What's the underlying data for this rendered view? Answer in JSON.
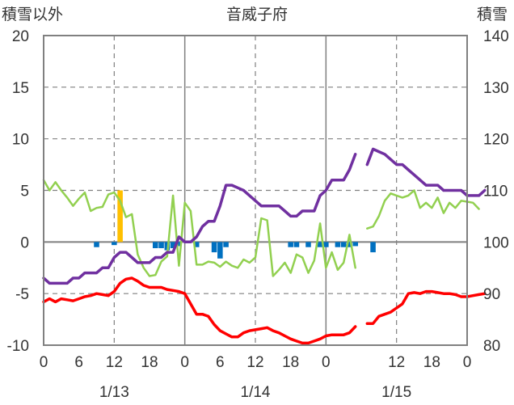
{
  "chart_data": {
    "type": "line",
    "title": "音威子府",
    "left_axis_label": "積雪以外",
    "right_axis_label": "積雪",
    "left_ylim": [
      -10,
      20
    ],
    "right_ylim": [
      80,
      140
    ],
    "left_ticks": [
      "20",
      "15",
      "10",
      "5",
      "0",
      "-5",
      "-10"
    ],
    "right_ticks": [
      "140",
      "130",
      "120",
      "110",
      "100",
      "90",
      "80"
    ],
    "x_tick_labels": [
      "0",
      "6",
      "12",
      "18",
      "0",
      "6",
      "12",
      "18",
      "0",
      "12",
      "18",
      "0"
    ],
    "x_tick_hours": [
      0,
      6,
      12,
      18,
      24,
      30,
      36,
      42,
      48,
      60,
      66,
      72
    ],
    "date_labels": [
      {
        "label": "1/13",
        "hour": 12
      },
      {
        "label": "1/14",
        "hour": 36
      },
      {
        "label": "1/15",
        "hour": 60
      }
    ],
    "x_range_hours": [
      0,
      72
    ],
    "grid": {
      "dashed_vertical_hours": [
        12,
        36,
        60
      ],
      "solid_vertical_hours": [
        24,
        48
      ],
      "zero_line": true
    },
    "colors": {
      "snow_depth": "#7030a0",
      "temperature": "#ff0000",
      "wind": "#92d050",
      "precip_blue": "#0070c0",
      "precip_orange": "#ffc000",
      "frame": "#808080",
      "grid": "#808080",
      "text": "#333333"
    },
    "series": [
      {
        "key": "snow_depth",
        "axis": "right",
        "width": 3.5,
        "segments": [
          [
            [
              0,
              93
            ],
            [
              1,
              92
            ],
            [
              2,
              92
            ],
            [
              3,
              92
            ],
            [
              4,
              92
            ],
            [
              5,
              93
            ],
            [
              6,
              93
            ],
            [
              7,
              94
            ],
            [
              8,
              94
            ],
            [
              9,
              94
            ],
            [
              10,
              95
            ],
            [
              11,
              95
            ],
            [
              12,
              97
            ],
            [
              13,
              98
            ],
            [
              14,
              98
            ],
            [
              15,
              97
            ],
            [
              16,
              96
            ],
            [
              17,
              96
            ],
            [
              18,
              96
            ],
            [
              19,
              97
            ],
            [
              20,
              97
            ],
            [
              21,
              98
            ],
            [
              22,
              98
            ],
            [
              23,
              101
            ],
            [
              24,
              100
            ],
            [
              25,
              100
            ],
            [
              26,
              101
            ],
            [
              27,
              103
            ],
            [
              28,
              104
            ],
            [
              29,
              104
            ],
            [
              30,
              107
            ],
            [
              31,
              111
            ],
            [
              32,
              111
            ],
            [
              33,
              110.5
            ],
            [
              34,
              110
            ],
            [
              35,
              109
            ],
            [
              36,
              108
            ],
            [
              37,
              107
            ],
            [
              38,
              107
            ],
            [
              39,
              107
            ],
            [
              40,
              107
            ],
            [
              41,
              106
            ],
            [
              42,
              105
            ],
            [
              43,
              105
            ],
            [
              44,
              106
            ],
            [
              45,
              106
            ],
            [
              46,
              106
            ],
            [
              47,
              109
            ],
            [
              48,
              110
            ],
            [
              49,
              112
            ],
            [
              50,
              112
            ],
            [
              51,
              112
            ],
            [
              52,
              114
            ],
            [
              53,
              117
            ]
          ],
          [
            [
              55,
              115
            ],
            [
              56,
              118
            ],
            [
              57,
              117.5
            ],
            [
              58,
              117
            ],
            [
              59,
              116
            ],
            [
              60,
              115
            ],
            [
              61,
              115
            ],
            [
              62,
              114
            ],
            [
              63,
              113
            ],
            [
              64,
              112
            ],
            [
              65,
              111
            ],
            [
              66,
              111
            ],
            [
              67,
              111
            ],
            [
              68,
              110
            ],
            [
              69,
              110
            ],
            [
              70,
              110
            ],
            [
              71,
              110
            ],
            [
              72,
              109
            ],
            [
              73,
              109
            ],
            [
              74,
              109
            ],
            [
              75,
              110
            ]
          ]
        ]
      },
      {
        "key": "temperature",
        "axis": "left",
        "width": 3.5,
        "segments": [
          [
            [
              0,
              -5.8
            ],
            [
              1,
              -5.5
            ],
            [
              2,
              -5.8
            ],
            [
              3,
              -5.5
            ],
            [
              4,
              -5.6
            ],
            [
              5,
              -5.7
            ],
            [
              6,
              -5.5
            ],
            [
              7,
              -5.3
            ],
            [
              8,
              -5.2
            ],
            [
              9,
              -5
            ],
            [
              10,
              -5.1
            ],
            [
              11,
              -5.2
            ],
            [
              12,
              -4.8
            ],
            [
              13,
              -4
            ],
            [
              14,
              -3.6
            ],
            [
              15,
              -3.5
            ],
            [
              16,
              -3.8
            ],
            [
              17,
              -4.2
            ],
            [
              18,
              -4.4
            ],
            [
              19,
              -4.4
            ],
            [
              20,
              -4.4
            ],
            [
              21,
              -4.6
            ],
            [
              22,
              -4.7
            ],
            [
              23,
              -4.8
            ],
            [
              24,
              -5
            ],
            [
              25,
              -6
            ],
            [
              26,
              -7
            ],
            [
              27,
              -7
            ],
            [
              28,
              -7.2
            ],
            [
              29,
              -8
            ],
            [
              30,
              -8.6
            ],
            [
              31,
              -8.9
            ],
            [
              32,
              -9.2
            ],
            [
              33,
              -9.2
            ],
            [
              34,
              -8.8
            ],
            [
              35,
              -8.6
            ],
            [
              36,
              -8.5
            ],
            [
              37,
              -8.4
            ],
            [
              38,
              -8.3
            ],
            [
              39,
              -8.6
            ],
            [
              40,
              -8.8
            ],
            [
              41,
              -9.1
            ],
            [
              42,
              -9.4
            ],
            [
              43,
              -9.6
            ],
            [
              44,
              -9.8
            ],
            [
              45,
              -9.8
            ],
            [
              46,
              -9.6
            ],
            [
              47,
              -9.4
            ],
            [
              48,
              -9.1
            ],
            [
              49,
              -9
            ],
            [
              50,
              -9
            ],
            [
              51,
              -9
            ],
            [
              52,
              -8.8
            ],
            [
              53,
              -8.2
            ]
          ],
          [
            [
              55,
              -7.9
            ],
            [
              56,
              -7.9
            ],
            [
              57,
              -7.2
            ],
            [
              58,
              -7
            ],
            [
              59,
              -6.8
            ],
            [
              60,
              -6.4
            ],
            [
              61,
              -6
            ],
            [
              62,
              -5
            ],
            [
              63,
              -4.9
            ],
            [
              64,
              -5
            ],
            [
              65,
              -4.8
            ],
            [
              66,
              -4.8
            ],
            [
              67,
              -4.9
            ],
            [
              68,
              -5
            ],
            [
              69,
              -5
            ],
            [
              70,
              -5.1
            ],
            [
              71,
              -5.3
            ],
            [
              72,
              -5.3
            ],
            [
              73,
              -5.2
            ],
            [
              74,
              -5.1
            ],
            [
              75,
              -5
            ]
          ]
        ]
      },
      {
        "key": "wind",
        "axis": "left",
        "width": 2.5,
        "segments": [
          [
            [
              0,
              6
            ],
            [
              1,
              5
            ],
            [
              2,
              5.8
            ],
            [
              3,
              5
            ],
            [
              4,
              4.3
            ],
            [
              5,
              3.5
            ],
            [
              6,
              4.2
            ],
            [
              7,
              4.8
            ],
            [
              8,
              3
            ],
            [
              9,
              3.3
            ],
            [
              10,
              3.4
            ],
            [
              11,
              4.6
            ],
            [
              12,
              4.8
            ],
            [
              13,
              4
            ],
            [
              14,
              2.4
            ],
            [
              15,
              2.7
            ],
            [
              16,
              -1.2
            ],
            [
              17,
              -2.5
            ],
            [
              18,
              -3.3
            ],
            [
              19,
              -3.2
            ],
            [
              20,
              -1.9
            ],
            [
              21,
              -1.4
            ],
            [
              22,
              4.5
            ],
            [
              23,
              -2.3
            ],
            [
              24,
              3.8
            ],
            [
              25,
              3
            ],
            [
              26,
              -2.2
            ],
            [
              27,
              -2.2
            ],
            [
              28,
              -1.9
            ],
            [
              29,
              -2
            ],
            [
              30,
              -2.4
            ],
            [
              31,
              -1.9
            ],
            [
              32,
              -2.3
            ],
            [
              33,
              -2.5
            ],
            [
              34,
              -1.7
            ],
            [
              35,
              -2
            ],
            [
              36,
              -1.5
            ],
            [
              37,
              2.3
            ],
            [
              38,
              2.1
            ],
            [
              39,
              -3.3
            ],
            [
              40,
              -2.7
            ],
            [
              41,
              -2
            ],
            [
              42,
              -3
            ],
            [
              43,
              -1.2
            ],
            [
              44,
              -1.5
            ],
            [
              45,
              -3
            ],
            [
              46,
              -1.8
            ],
            [
              47,
              1.8
            ],
            [
              48,
              -2.5
            ],
            [
              49,
              -1
            ],
            [
              50,
              -2.7
            ],
            [
              51,
              -2
            ],
            [
              52,
              0.7
            ],
            [
              53,
              -2.5
            ]
          ],
          [
            [
              55,
              1.3
            ],
            [
              56,
              1.5
            ],
            [
              57,
              2.5
            ],
            [
              58,
              4
            ],
            [
              59,
              4.7
            ],
            [
              60,
              4.5
            ],
            [
              61,
              4.3
            ],
            [
              62,
              4.5
            ],
            [
              63,
              5
            ],
            [
              64,
              3.3
            ],
            [
              65,
              3.8
            ],
            [
              66,
              3.3
            ],
            [
              67,
              4.3
            ],
            [
              68,
              2.8
            ],
            [
              69,
              3.8
            ],
            [
              70,
              3.3
            ],
            [
              71,
              4
            ],
            [
              72,
              3.9
            ],
            [
              73,
              3.8
            ],
            [
              74,
              3.2
            ]
          ]
        ]
      }
    ],
    "bars": {
      "axis": "left",
      "values": [
        [
          9,
          -0.5
        ],
        [
          12,
          -0.3
        ],
        [
          19,
          -0.6
        ],
        [
          20,
          -0.6
        ],
        [
          21,
          -0.8
        ],
        [
          22,
          -0.6
        ],
        [
          23,
          -0.4
        ],
        [
          26,
          -0.5
        ],
        [
          29,
          -1
        ],
        [
          30,
          -1.6
        ],
        [
          31,
          -0.5
        ],
        [
          42,
          -0.5
        ],
        [
          43,
          -0.5
        ],
        [
          45,
          -0.5
        ],
        [
          47,
          -0.5
        ],
        [
          48,
          -0.5
        ],
        [
          50,
          -0.5
        ],
        [
          51,
          -0.5
        ],
        [
          52,
          -0.5
        ],
        [
          53,
          -0.4
        ],
        [
          56,
          -1
        ]
      ],
      "highlight": [
        [
          13,
          5
        ]
      ]
    }
  }
}
